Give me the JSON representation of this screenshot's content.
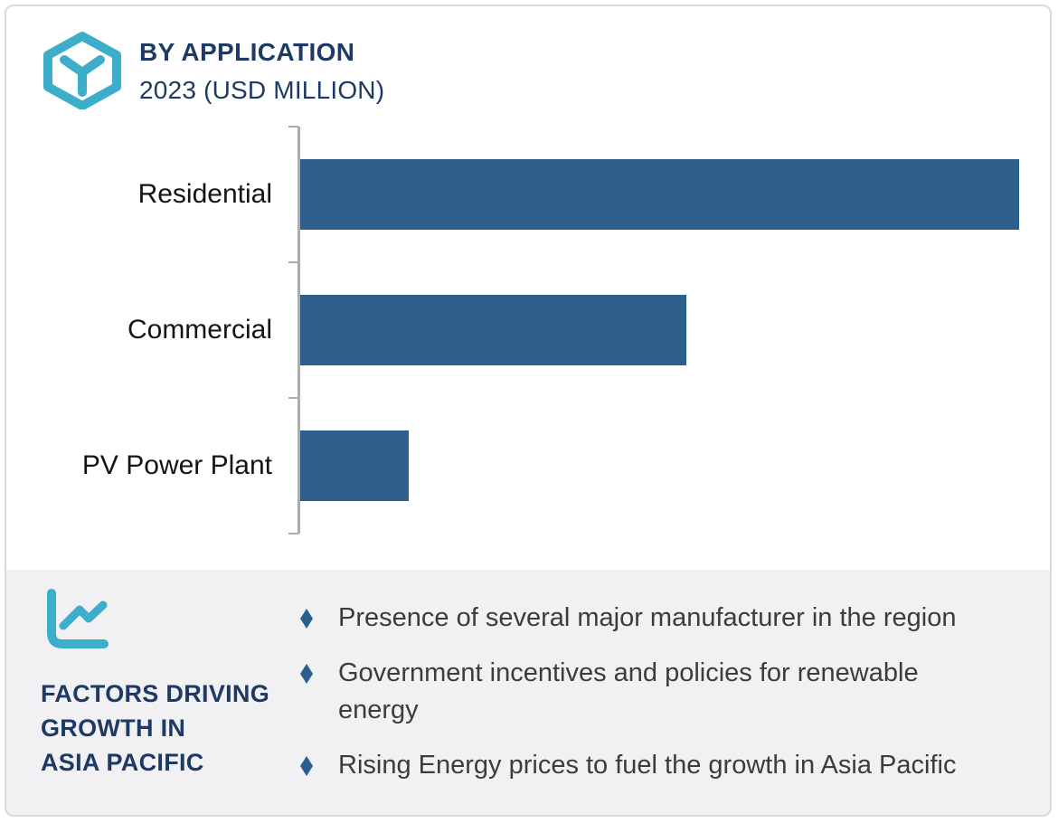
{
  "header": {
    "icon": "hexagon-y-logo-icon",
    "title": "BY APPLICATION",
    "subtitle": "2023 (USD MILLION)"
  },
  "chart_data": {
    "type": "bar",
    "orientation": "horizontal",
    "title": "BY APPLICATION",
    "subtitle": "2023 (USD MILLION)",
    "unit": "USD Million",
    "year": "2023",
    "categories": [
      "Residential",
      "Commercial",
      "PV Power Plant"
    ],
    "values": [
      100,
      53.7,
      15.1
    ],
    "values_note": "axis has no numeric tick labels; values estimated as percent of longest bar",
    "bar_color": "#2D5E8C",
    "gridlines": false,
    "legend": "none"
  },
  "factors": {
    "icon": "line-chart-icon",
    "heading_lines": [
      "FACTORS DRIVING",
      "GROWTH IN",
      "ASIA PACIFIC"
    ],
    "items": [
      {
        "lines": [
          "Presence of several major manufacturer in the region"
        ]
      },
      {
        "lines": [
          "Government incentives and policies for renewable",
          "energy"
        ]
      },
      {
        "lines": [
          "Rising Energy prices to fuel the growth in Asia Pacific"
        ]
      }
    ]
  },
  "colors": {
    "navy": "#1E3A64",
    "teal": "#3CAECA",
    "bar_blue": "#2D5E8C",
    "diamond_blue": "#2B5E8E",
    "panel_bg": "#F1F1F4",
    "frame_border": "#D9DAE0",
    "axis_gray": "#ACACAC",
    "category_label": "#141414",
    "bullet_text": "#3C3C3C"
  }
}
